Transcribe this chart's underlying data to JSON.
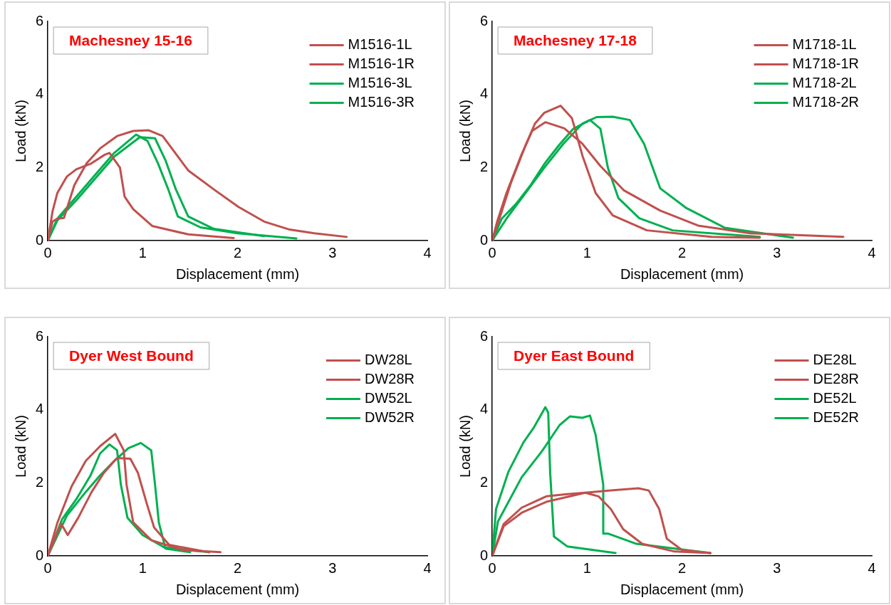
{
  "chart_data": [
    {
      "type": "line",
      "title": "Machesney 15-16",
      "xlabel": "Displacement (mm)",
      "ylabel": "Load (kN)",
      "xlim": [
        0,
        4
      ],
      "ylim": [
        0,
        6
      ],
      "xticks": [
        0,
        1,
        2,
        3,
        4
      ],
      "yticks": [
        0,
        2,
        4,
        6
      ],
      "grid": false,
      "legend": "top right",
      "marker": "none",
      "series": [
        {
          "name": "M1516-1L",
          "color": "#c0504d",
          "x": [
            0,
            0.05,
            0.1,
            0.17,
            0.28,
            0.41,
            0.55,
            0.73,
            0.9,
            1.06,
            1.21,
            1.48,
            1.75,
            2.01,
            2.28,
            2.55,
            2.81,
            3.15
          ],
          "values": [
            0,
            0.52,
            0.6,
            0.62,
            1.52,
            2.12,
            2.52,
            2.86,
            3.0,
            3.02,
            2.86,
            1.92,
            1.4,
            0.92,
            0.52,
            0.3,
            0.2,
            0.1
          ]
        },
        {
          "name": "M1516-1R",
          "color": "#c0504d",
          "x": [
            0,
            0.05,
            0.1,
            0.2,
            0.3,
            0.45,
            0.6,
            0.65,
            0.76,
            0.81,
            0.9,
            1.1,
            1.48,
            1.96
          ],
          "values": [
            0,
            0.8,
            1.3,
            1.75,
            1.95,
            2.1,
            2.35,
            2.4,
            2.0,
            1.2,
            0.86,
            0.4,
            0.17,
            0.07
          ]
        },
        {
          "name": "M1516-3L",
          "color": "#00b050",
          "x": [
            0,
            0.1,
            0.3,
            0.5,
            0.7,
            0.93,
            1.05,
            1.16,
            1.27,
            1.37,
            1.61,
            2.0,
            2.62
          ],
          "values": [
            0,
            0.6,
            1.2,
            1.8,
            2.4,
            2.9,
            2.73,
            2.12,
            1.4,
            0.66,
            0.36,
            0.2,
            0.06
          ]
        },
        {
          "name": "M1516-3R",
          "color": "#00b050",
          "x": [
            0,
            0.1,
            0.3,
            0.5,
            0.7,
            0.97,
            1.13,
            1.24,
            1.35,
            1.48,
            1.75,
            2.28
          ],
          "values": [
            0,
            0.55,
            1.1,
            1.7,
            2.3,
            2.83,
            2.8,
            2.2,
            1.4,
            0.66,
            0.32,
            0.12
          ]
        }
      ]
    },
    {
      "type": "line",
      "title": "Machesney 17-18",
      "xlabel": "Displacement (mm)",
      "ylabel": "Load (kN)",
      "xlim": [
        0,
        4
      ],
      "ylim": [
        0,
        6
      ],
      "xticks": [
        0,
        1,
        2,
        3,
        4
      ],
      "yticks": [
        0,
        2,
        4,
        6
      ],
      "grid": false,
      "legend": "top right",
      "marker": "none",
      "series": [
        {
          "name": "M1718-1L",
          "color": "#c0504d",
          "x": [
            0,
            0.1,
            0.2,
            0.35,
            0.45,
            0.55,
            0.72,
            0.84,
            0.95,
            1.09,
            1.27,
            1.63,
            2.31,
            2.82
          ],
          "values": [
            0,
            0.8,
            1.6,
            2.6,
            3.2,
            3.5,
            3.69,
            3.35,
            2.33,
            1.3,
            0.69,
            0.28,
            0.1,
            0.08
          ]
        },
        {
          "name": "M1718-1R",
          "color": "#c0504d",
          "x": [
            0,
            0.05,
            0.15,
            0.3,
            0.42,
            0.56,
            0.76,
            0.95,
            1.14,
            1.39,
            1.77,
            2.17,
            2.72,
            3.7
          ],
          "values": [
            0,
            0.5,
            1.3,
            2.3,
            3.0,
            3.24,
            3.07,
            2.65,
            2.04,
            1.37,
            0.82,
            0.41,
            0.2,
            0.1
          ]
        },
        {
          "name": "M1718-2L",
          "color": "#00b050",
          "x": [
            0,
            0.1,
            0.25,
            0.4,
            0.55,
            0.7,
            0.85,
            1.03,
            1.14,
            1.22,
            1.33,
            1.55,
            1.9,
            2.82
          ],
          "values": [
            0,
            0.6,
            1.0,
            1.5,
            2.1,
            2.6,
            3.05,
            3.3,
            3.06,
            1.98,
            1.16,
            0.61,
            0.28,
            0.1
          ]
        },
        {
          "name": "M1718-2R",
          "color": "#00b050",
          "x": [
            0,
            0.15,
            0.35,
            0.55,
            0.75,
            0.95,
            1.1,
            1.27,
            1.45,
            1.6,
            1.77,
            2.04,
            2.45,
            3.17
          ],
          "values": [
            0,
            0.6,
            1.3,
            2.0,
            2.65,
            3.2,
            3.38,
            3.39,
            3.3,
            2.65,
            1.43,
            0.9,
            0.35,
            0.08
          ]
        }
      ]
    },
    {
      "type": "line",
      "title": "Dyer West Bound",
      "xlabel": "Displacement (mm)",
      "ylabel": "Load (kN)",
      "xlim": [
        0,
        4
      ],
      "ylim": [
        0,
        6
      ],
      "xticks": [
        0,
        1,
        2,
        3,
        4
      ],
      "yticks": [
        0,
        2,
        4,
        6
      ],
      "grid": false,
      "legend": "top right",
      "marker": "none",
      "series": [
        {
          "name": "DW28L",
          "color": "#c0504d",
          "x": [
            0,
            0.1,
            0.25,
            0.4,
            0.55,
            0.71,
            0.8,
            0.83,
            0.9,
            1.09,
            1.42,
            1.82
          ],
          "values": [
            0,
            0.9,
            1.9,
            2.6,
            3.0,
            3.34,
            2.89,
            1.95,
            0.92,
            0.43,
            0.16,
            0.1
          ]
        },
        {
          "name": "DW28R",
          "color": "#c0504d",
          "x": [
            0,
            0.14,
            0.21,
            0.32,
            0.46,
            0.59,
            0.73,
            0.87,
            0.95,
            1.04,
            1.12,
            1.28,
            1.7
          ],
          "values": [
            0,
            0.88,
            0.57,
            1.04,
            1.74,
            2.27,
            2.68,
            2.66,
            2.27,
            1.46,
            0.78,
            0.3,
            0.1
          ]
        },
        {
          "name": "DW52L",
          "color": "#00b050",
          "x": [
            0,
            0.15,
            0.3,
            0.45,
            0.55,
            0.65,
            0.73,
            0.77,
            0.84,
            1.0,
            1.23,
            1.7
          ],
          "values": [
            0,
            1.0,
            1.55,
            2.2,
            2.8,
            3.05,
            2.89,
            1.95,
            1.04,
            0.57,
            0.23,
            0.1
          ]
        },
        {
          "name": "DW52R",
          "color": "#00b050",
          "x": [
            0,
            0.2,
            0.4,
            0.55,
            0.7,
            0.85,
            0.98,
            1.09,
            1.13,
            1.17,
            1.24,
            1.5
          ],
          "values": [
            0,
            1.1,
            1.75,
            2.2,
            2.6,
            2.95,
            3.09,
            2.89,
            1.95,
            0.92,
            0.2,
            0.1
          ]
        }
      ]
    },
    {
      "type": "line",
      "title": "Dyer East Bound",
      "xlabel": "Displacement (mm)",
      "ylabel": "Load (kN)",
      "xlim": [
        0,
        4
      ],
      "ylim": [
        0,
        6
      ],
      "xticks": [
        0,
        1,
        2,
        3,
        4
      ],
      "yticks": [
        0,
        2,
        4,
        6
      ],
      "grid": false,
      "legend": "top right",
      "marker": "none",
      "series": [
        {
          "name": "DE28L",
          "color": "#c0504d",
          "x": [
            0,
            0.12,
            0.31,
            0.57,
            0.98,
            1.25,
            1.54,
            1.65,
            1.76,
            1.84,
            2.0,
            2.3
          ],
          "values": [
            0,
            0.81,
            1.18,
            1.48,
            1.73,
            1.79,
            1.85,
            1.79,
            1.28,
            0.47,
            0.16,
            0.08
          ]
        },
        {
          "name": "DE28R",
          "color": "#c0504d",
          "x": [
            0,
            0.12,
            0.31,
            0.57,
            0.79,
            0.98,
            1.12,
            1.25,
            1.38,
            1.58,
            1.92,
            2.3
          ],
          "values": [
            0,
            0.87,
            1.32,
            1.63,
            1.69,
            1.73,
            1.63,
            1.28,
            0.73,
            0.33,
            0.12,
            0.08
          ]
        },
        {
          "name": "DE52L",
          "color": "#00b050",
          "x": [
            0,
            0.04,
            0.17,
            0.33,
            0.44,
            0.56,
            0.59,
            0.61,
            0.65,
            0.79,
            1.3
          ],
          "values": [
            0,
            1.28,
            2.3,
            3.11,
            3.52,
            4.07,
            3.92,
            2.3,
            0.53,
            0.26,
            0.08
          ]
        },
        {
          "name": "DE52R",
          "color": "#00b050",
          "x": [
            0,
            0.06,
            0.31,
            0.52,
            0.71,
            0.82,
            0.95,
            1.03,
            1.09,
            1.17,
            1.17,
            1.22,
            1.52,
            2.3
          ],
          "values": [
            0,
            0.94,
            2.15,
            2.85,
            3.58,
            3.82,
            3.78,
            3.84,
            3.31,
            1.95,
            0.61,
            0.61,
            0.33,
            0.08
          ]
        }
      ]
    }
  ]
}
